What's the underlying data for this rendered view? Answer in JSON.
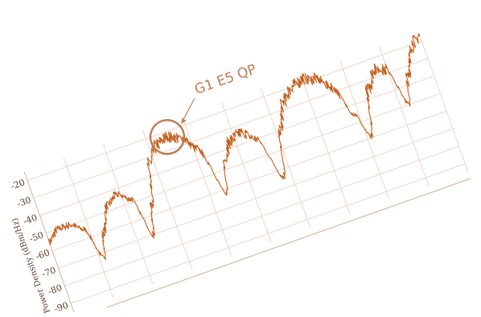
{
  "chart_data": {
    "type": "line",
    "title": "",
    "xlabel": "",
    "ylabel": "Power Density (dBm/Hz)",
    "ylim": [
      -95,
      -15
    ],
    "yticks": [
      -20,
      -30,
      -40,
      -50,
      -60,
      -70,
      -80,
      -90
    ],
    "grid": true,
    "series": [
      {
        "color": "#c4601e",
        "description_points": [
          [
            0.0,
            -55
          ],
          [
            0.03,
            -50
          ],
          [
            0.06,
            -50
          ],
          [
            0.09,
            -55
          ],
          [
            0.11,
            -73
          ],
          [
            0.13,
            -60
          ],
          [
            0.16,
            -47
          ],
          [
            0.19,
            -43
          ],
          [
            0.22,
            -48
          ],
          [
            0.24,
            -70
          ],
          [
            0.26,
            -55
          ],
          [
            0.29,
            -33
          ],
          [
            0.32,
            -25
          ],
          [
            0.35,
            -23
          ],
          [
            0.38,
            -26
          ],
          [
            0.41,
            -35
          ],
          [
            0.44,
            -62
          ],
          [
            0.46,
            -45
          ],
          [
            0.49,
            -36
          ],
          [
            0.52,
            -34
          ],
          [
            0.55,
            -40
          ],
          [
            0.58,
            -64
          ],
          [
            0.61,
            -40
          ],
          [
            0.64,
            -26
          ],
          [
            0.67,
            -20
          ],
          [
            0.7,
            -18
          ],
          [
            0.73,
            -20
          ],
          [
            0.76,
            -27
          ],
          [
            0.79,
            -45
          ],
          [
            0.81,
            -60
          ],
          [
            0.84,
            -35
          ],
          [
            0.87,
            -26
          ],
          [
            0.9,
            -28
          ],
          [
            0.92,
            -50
          ],
          [
            0.94,
            -36
          ],
          [
            0.96,
            -26
          ],
          [
            0.98,
            -19
          ],
          [
            1.0,
            -17
          ]
        ]
      }
    ],
    "annotations": [
      {
        "text": "G1 E5 QP",
        "target_x": 0.35,
        "target_y": -23
      }
    ],
    "colors": {
      "trace": "#c4601e",
      "grid": "#ead7cc",
      "annotation": "#c07b55"
    }
  }
}
